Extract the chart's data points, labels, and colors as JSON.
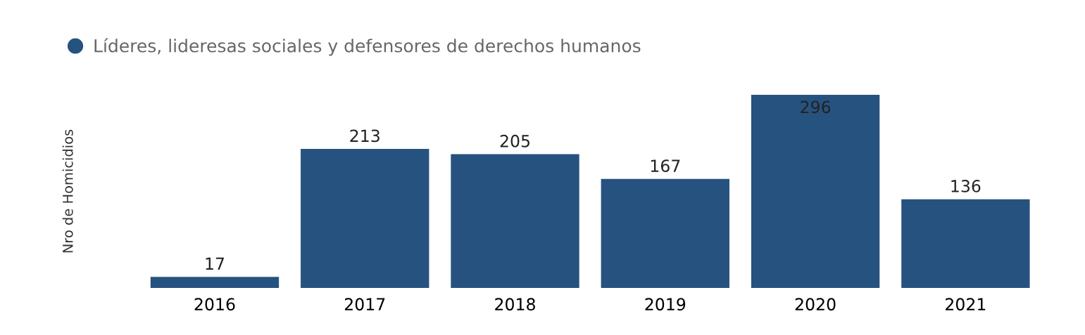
{
  "chart_data": {
    "type": "bar",
    "ylabel": "Nro de Homicidios",
    "categories": [
      "2016",
      "2017",
      "2018",
      "2019",
      "2020",
      "2021"
    ],
    "series": [
      {
        "name": "Líderes, lideresas sociales y defensores de derechos humanos",
        "color": "#26527f",
        "values": [
          17,
          213,
          205,
          167,
          296,
          136
        ]
      }
    ],
    "data_labels": true,
    "legend": "top left",
    "grid": false
  }
}
